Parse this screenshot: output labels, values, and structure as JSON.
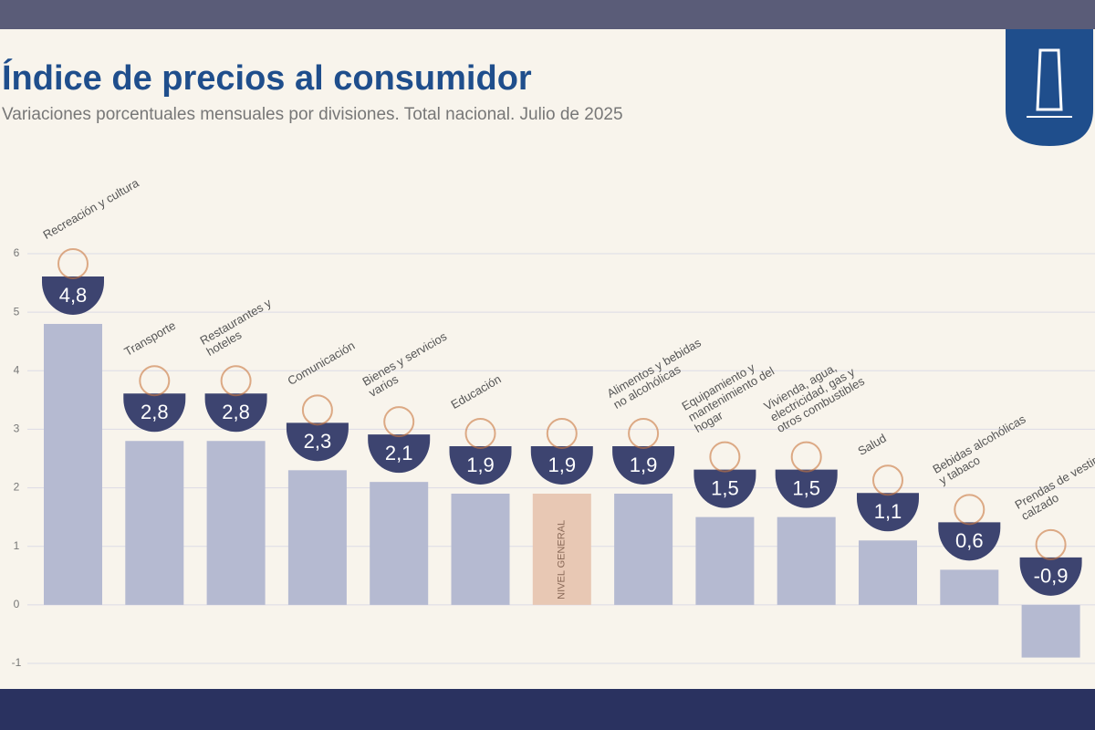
{
  "chart_data": {
    "type": "bar",
    "title": "Índice de precios al consumidor",
    "subtitle": "Variaciones porcentuales mensuales por divisiones. Total nacional. Julio de 2025",
    "categories": [
      "Recreación y cultura",
      "Transporte",
      "Restaurantes y hoteles",
      "Comunicación",
      "Bienes y servicios varios",
      "Educación",
      "NIVEL GENERAL",
      "Alimentos y bebidas no alcohólicas",
      "Equipamiento y mantenimiento del hogar",
      "Vivienda, agua, electricidad, gas y otros combustibles",
      "Salud",
      "Bebidas alcohólicas y tabaco",
      "Prendas de vestir y calzado"
    ],
    "values": [
      4.8,
      2.8,
      2.8,
      2.3,
      2.1,
      1.9,
      1.9,
      1.9,
      1.5,
      1.5,
      1.1,
      0.6,
      -0.9
    ],
    "value_labels": [
      "4,8",
      "2,8",
      "2,8",
      "2,3",
      "2,1",
      "1,9",
      "1,9",
      "1,9",
      "1,5",
      "1,5",
      "1,1",
      "0,6",
      "-0,9"
    ],
    "colors": [
      "#b5bad1",
      "#b5bad1",
      "#b5bad1",
      "#b5bad1",
      "#b5bad1",
      "#b5bad1",
      "#e8c8b4",
      "#b5bad1",
      "#b5bad1",
      "#b5bad1",
      "#b5bad1",
      "#b5bad1",
      "#b5bad1"
    ],
    "badge_color": "#3d4470",
    "ylim": [
      -1,
      6
    ],
    "yticks": [
      -1,
      0,
      1,
      2,
      3,
      4,
      5,
      6
    ],
    "grid": true
  }
}
